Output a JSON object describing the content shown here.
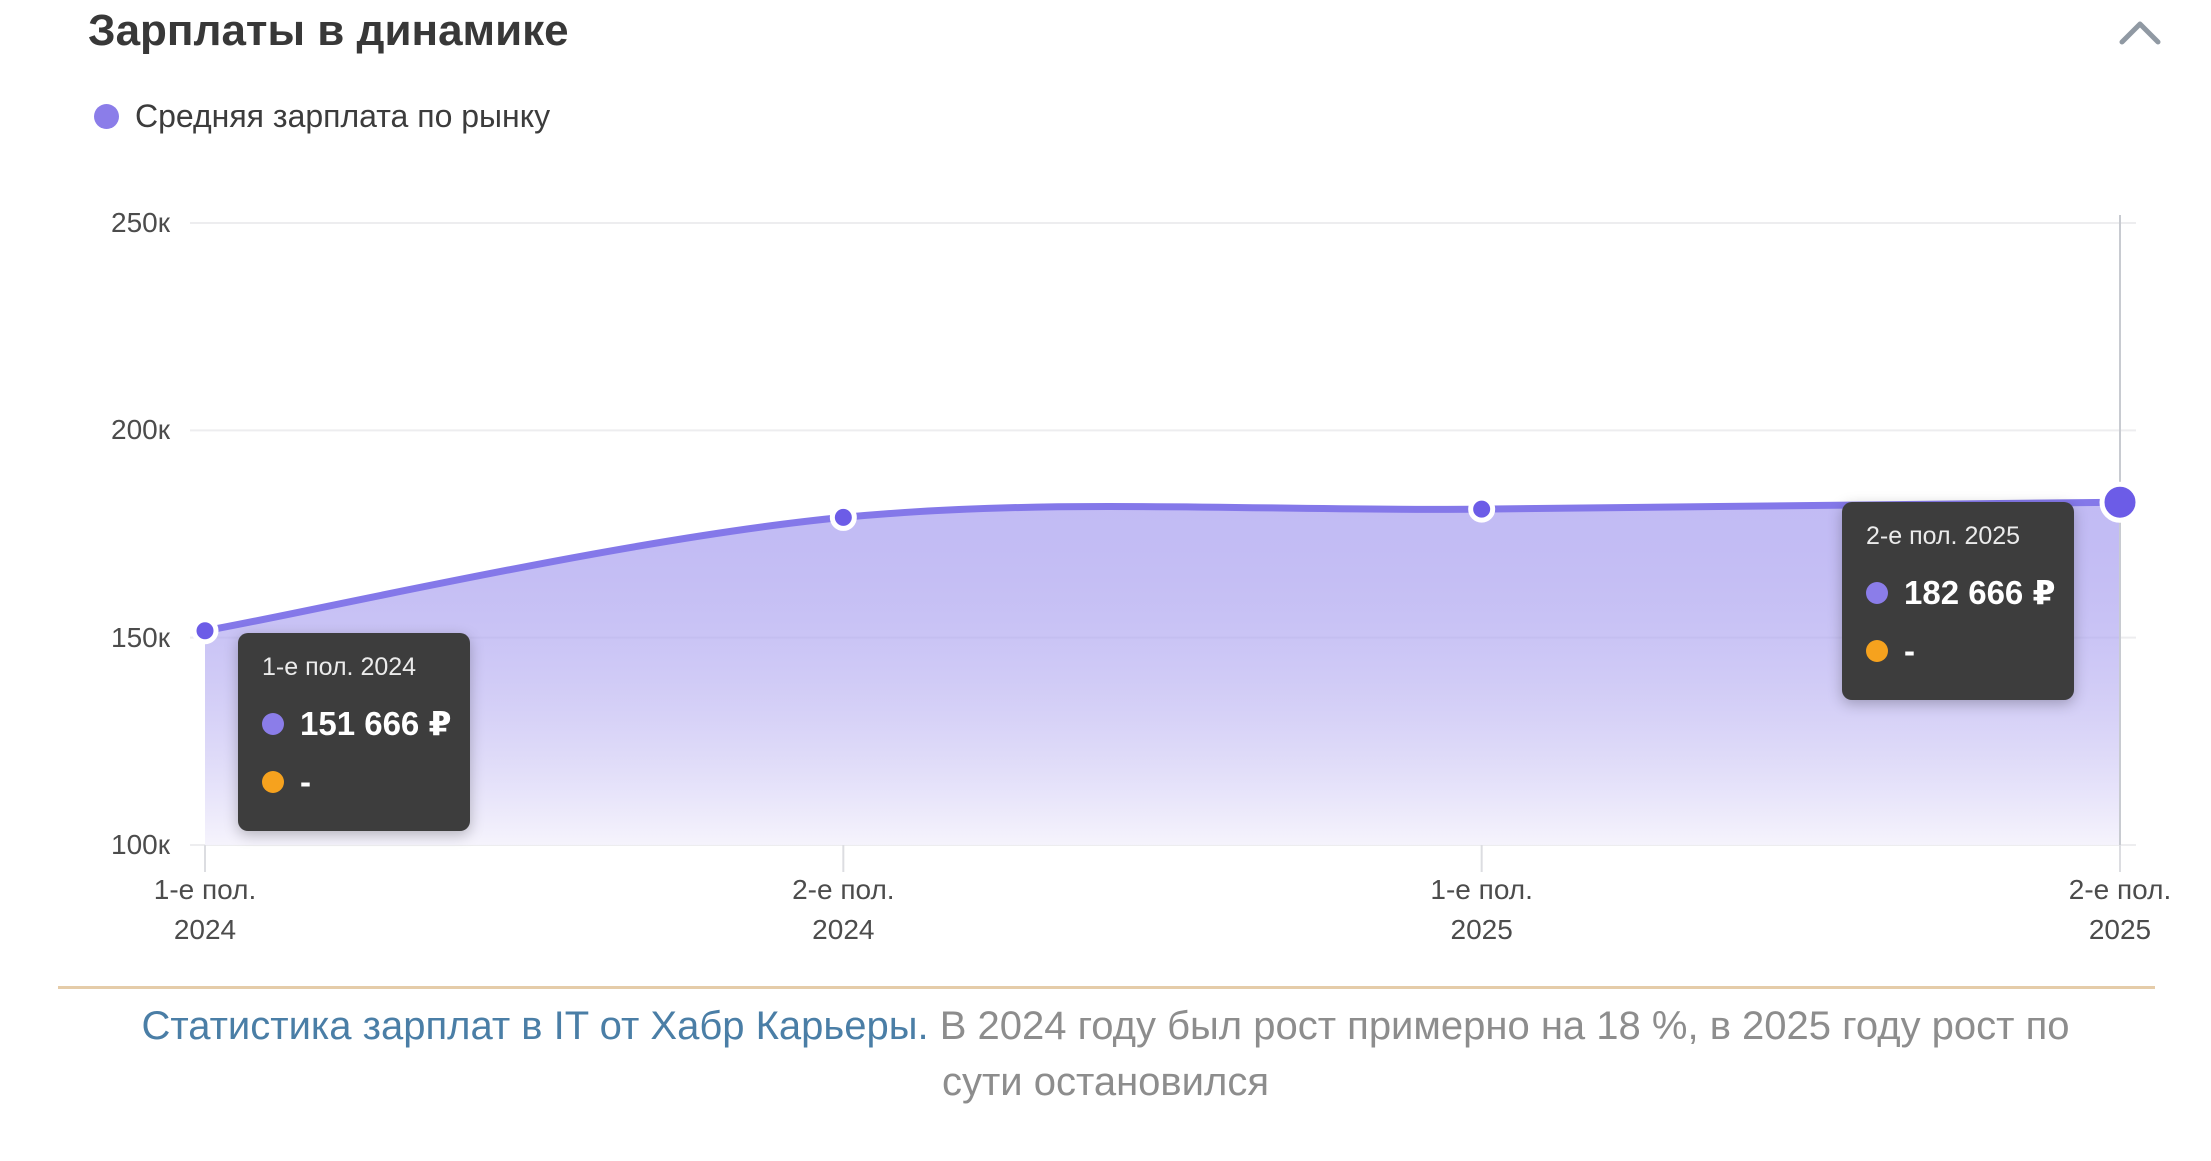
{
  "header": {
    "title": "Зарплаты в динамике"
  },
  "legend": {
    "items": [
      {
        "label": "Средняя зарплата по рынку",
        "color": "#8b7de9"
      }
    ]
  },
  "chart_data": {
    "type": "area",
    "title": "Зарплаты в динамике",
    "series": [
      {
        "name": "Средняя зарплата по рынку",
        "color": "#8478e9",
        "point_color": "#6c5ce7",
        "values": [
          151666,
          179000,
          181000,
          182666
        ]
      }
    ],
    "categories": [
      [
        "1-е пол.",
        "2024"
      ],
      [
        "2-е пол.",
        "2024"
      ],
      [
        "1-е пол.",
        "2025"
      ],
      [
        "2-е пол.",
        "2025"
      ]
    ],
    "ylim": [
      100000,
      250000
    ],
    "yticks": [
      {
        "value": 250000,
        "label": "250к"
      },
      {
        "value": 200000,
        "label": "200к"
      },
      {
        "value": 150000,
        "label": "150к"
      },
      {
        "value": 100000,
        "label": "100к"
      }
    ],
    "grid": "horizontal",
    "legend_position": "top-left",
    "highlighted_point_index": 3
  },
  "tooltips": [
    {
      "period": "1-е пол. 2024",
      "value": "151 666 ₽",
      "series_color": "#8b7de9",
      "secondary_value": "-",
      "secondary_color": "#f6a21e"
    },
    {
      "period": "2-е пол. 2025",
      "value": "182 666 ₽",
      "series_color": "#8b7de9",
      "secondary_value": "-",
      "secondary_color": "#f6a21e"
    }
  ],
  "caption": {
    "link_text": "Статистика зарплат в IT от Хабр Карьеры.",
    "text": " В 2024 году был рост примерно на 18 %, в 2025 году рост по сути остановился"
  },
  "colors": {
    "accent_purple": "#8478e9",
    "point_purple": "#6c5ce7",
    "legend_purple": "#8b7de9",
    "orange": "#f6a21e",
    "tooltip_bg": "#3d3d3d",
    "grid": "#ededef",
    "axis_tick": "#dcdde1",
    "crosshair": "#c8cbd1",
    "area_top": "rgba(133,120,233,0.50)",
    "area_bottom": "rgba(245,243,252,0.95)",
    "link_blue": "#4a7ea6",
    "caption_gray": "#8d8d8d",
    "separator_tan": "#e5cca9",
    "chevron_gray": "#9099a3"
  }
}
